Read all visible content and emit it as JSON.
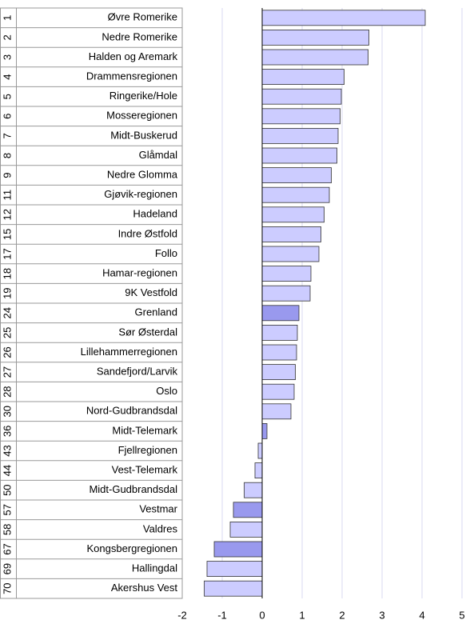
{
  "chart_data": {
    "type": "bar",
    "orientation": "horizontal",
    "ranks": [
      "1",
      "2",
      "3",
      "4",
      "5",
      "6",
      "7",
      "8",
      "9",
      "11",
      "12",
      "15",
      "17",
      "18",
      "19",
      "24",
      "25",
      "26",
      "27",
      "28",
      "30",
      "36",
      "43",
      "44",
      "50",
      "57",
      "58",
      "67",
      "69",
      "70"
    ],
    "categories": [
      "Øvre Romerike",
      "Nedre Romerike",
      "Halden og Aremark",
      "Drammensregionen",
      "Ringerike/Hole",
      "Mosseregionen",
      "Midt-Buskerud",
      "Glåmdal",
      "Nedre Glomma",
      "Gjøvik-regionen",
      "Hadeland",
      "Indre Østfold",
      "Follo",
      "Hamar-regionen",
      "9K Vestfold",
      "Grenland",
      "Sør Østerdal",
      "Lillehammerregionen",
      "Sandefjord/Larvik",
      "Oslo",
      "Nord-Gudbrandsdal",
      "Midt-Telemark",
      "Fjellregionen",
      "Vest-Telemark",
      "Midt-Gudbrandsdal",
      "Vestmar",
      "Valdres",
      "Kongsbergregionen",
      "Hallingdal",
      "Akershus Vest"
    ],
    "values": [
      4.08,
      2.67,
      2.65,
      2.05,
      1.98,
      1.95,
      1.9,
      1.87,
      1.73,
      1.68,
      1.55,
      1.47,
      1.42,
      1.22,
      1.2,
      0.92,
      0.88,
      0.86,
      0.83,
      0.8,
      0.72,
      0.12,
      -0.1,
      -0.18,
      -0.45,
      -0.72,
      -0.8,
      -1.2,
      -1.38,
      -1.45
    ],
    "colors": [
      "#ccccff",
      "#ccccff",
      "#ccccff",
      "#ccccff",
      "#ccccff",
      "#ccccff",
      "#ccccff",
      "#ccccff",
      "#ccccff",
      "#ccccff",
      "#ccccff",
      "#ccccff",
      "#ccccff",
      "#ccccff",
      "#ccccff",
      "#9999ee",
      "#ccccff",
      "#ccccff",
      "#ccccff",
      "#ccccff",
      "#ccccff",
      "#9999ee",
      "#ccccff",
      "#ccccff",
      "#ccccff",
      "#9999ee",
      "#ccccff",
      "#9999ee",
      "#ccccff",
      "#ccccff"
    ],
    "xlim": [
      -2,
      5
    ],
    "xticks": [
      -2,
      -1,
      0,
      1,
      2,
      3,
      4,
      5
    ],
    "grid": true
  }
}
